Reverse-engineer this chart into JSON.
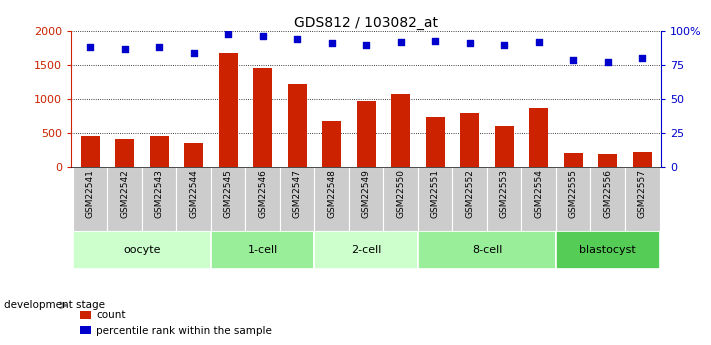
{
  "title": "GDS812 / 103082_at",
  "samples": [
    "GSM22541",
    "GSM22542",
    "GSM22543",
    "GSM22544",
    "GSM22545",
    "GSM22546",
    "GSM22547",
    "GSM22548",
    "GSM22549",
    "GSM22550",
    "GSM22551",
    "GSM22552",
    "GSM22553",
    "GSM22554",
    "GSM22555",
    "GSM22556",
    "GSM22557"
  ],
  "counts": [
    460,
    420,
    460,
    355,
    1680,
    1460,
    1220,
    675,
    970,
    1080,
    740,
    800,
    610,
    870,
    210,
    185,
    215
  ],
  "percentile_ranks": [
    88,
    87,
    88,
    84,
    98,
    96,
    94,
    91,
    90,
    92,
    93,
    91,
    90,
    92,
    79,
    77,
    80
  ],
  "bar_color": "#CC2200",
  "dot_color": "#0000CC",
  "left_axis_color": "#CC2200",
  "right_axis_color": "#0000CC",
  "ylim_left": [
    0,
    2000
  ],
  "ylim_right": [
    0,
    100
  ],
  "yticks_left": [
    0,
    500,
    1000,
    1500,
    2000
  ],
  "ytick_labels_left": [
    "0",
    "500",
    "1000",
    "1500",
    "2000"
  ],
  "yticks_right": [
    0,
    25,
    50,
    75,
    100
  ],
  "ytick_labels_right": [
    "0",
    "25",
    "50",
    "75",
    "100%"
  ],
  "groups": [
    {
      "label": "oocyte",
      "start": 0,
      "end": 3,
      "color": "#CCFFCC"
    },
    {
      "label": "1-cell",
      "start": 4,
      "end": 6,
      "color": "#99EE99"
    },
    {
      "label": "2-cell",
      "start": 7,
      "end": 9,
      "color": "#CCFFCC"
    },
    {
      "label": "8-cell",
      "start": 10,
      "end": 13,
      "color": "#99EE99"
    },
    {
      "label": "blastocyst",
      "start": 14,
      "end": 16,
      "color": "#55CC55"
    }
  ],
  "dev_stage_label": "development stage",
  "legend_count_label": "count",
  "legend_percentile_label": "percentile rank within the sample",
  "tick_bg_color": "#CCCCCC",
  "xlim": [
    -0.55,
    16.55
  ]
}
